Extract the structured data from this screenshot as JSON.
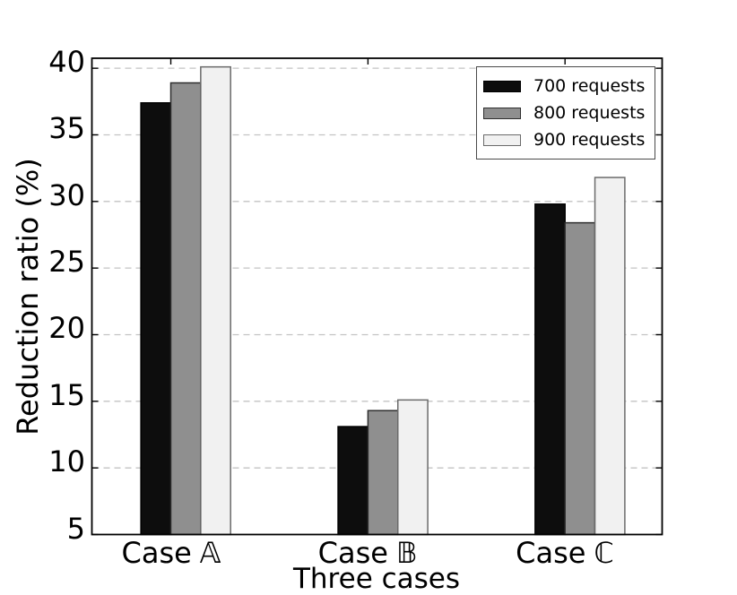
{
  "chart_data": {
    "type": "bar",
    "title": "",
    "xlabel": "Three cases",
    "ylabel": "Reduction ratio (%)",
    "categories": [
      {
        "prefix": "Case",
        "symbol": "𝔸"
      },
      {
        "prefix": "Case",
        "symbol": "𝔹"
      },
      {
        "prefix": "Case",
        "symbol": "ℂ"
      }
    ],
    "series": [
      {
        "name": "700 requests",
        "color": "#0d0d0d",
        "edge_color": "#000000",
        "values": [
          37.4,
          13.1,
          29.8
        ]
      },
      {
        "name": "800 requests",
        "color": "#8f8f8f",
        "edge_color": "#2e2e2e",
        "values": [
          38.9,
          14.3,
          28.4
        ]
      },
      {
        "name": "900 requests",
        "color": "#f1f1f1",
        "edge_color": "#6b6b6b",
        "values": [
          40.1,
          15.1,
          31.8
        ]
      }
    ],
    "yticks": [
      5,
      10,
      15,
      20,
      25,
      30,
      35,
      40
    ],
    "ylim": [
      5,
      40.75
    ],
    "grid": {
      "axis": "y",
      "style": "dashed",
      "color": "#c3c3c3"
    },
    "legend": {
      "position": "upper right"
    },
    "axis_color": "#000000",
    "background": "#ffffff"
  }
}
